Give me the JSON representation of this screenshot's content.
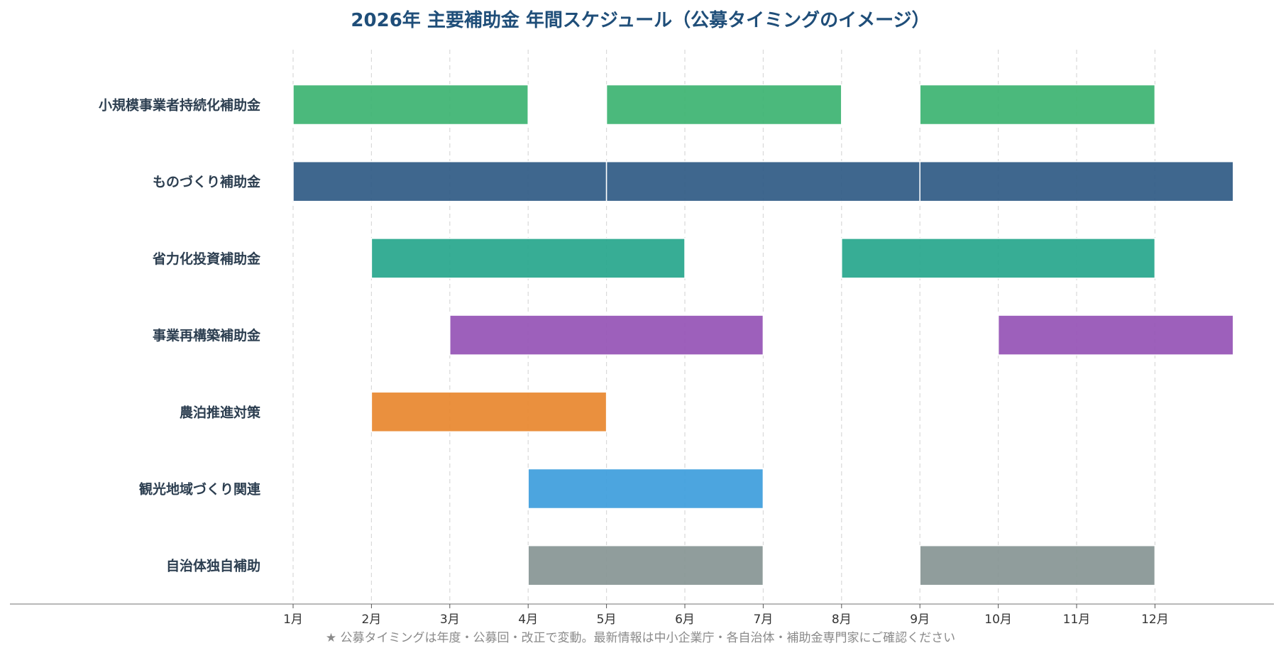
{
  "chart_data": {
    "type": "gantt",
    "title": "2026年 主要補助金 年間スケジュール（公募タイミングのイメージ）",
    "xlim": [
      1,
      13
    ],
    "x_tick_values": [
      1,
      2,
      3,
      4,
      5,
      6,
      7,
      8,
      9,
      10,
      11,
      12
    ],
    "x_tick_labels": [
      "1月",
      "2月",
      "3月",
      "4月",
      "5月",
      "6月",
      "7月",
      "8月",
      "9月",
      "10月",
      "11月",
      "12月"
    ],
    "grid": "vertical dashed",
    "note": "★ 公募タイミングは年度・公募回・改正で変動。最新情報は中小企業庁・各自治体・補助金専門家にご確認ください",
    "categories": [
      "小規模事業者持続化補助金",
      "ものづくり補助金",
      "省力化投資補助金",
      "事業再構築補助金",
      "農泊推進対策",
      "観光地域づくり関連",
      "自治体独自補助"
    ],
    "series": [
      {
        "color": "#3cb371",
        "periods": [
          [
            1,
            4
          ],
          [
            5,
            8
          ],
          [
            9,
            12
          ]
        ]
      },
      {
        "color": "#2f5a84",
        "periods": [
          [
            1,
            5
          ],
          [
            5,
            9
          ],
          [
            9,
            13
          ]
        ]
      },
      {
        "color": "#26a68c",
        "periods": [
          [
            2,
            6
          ],
          [
            8,
            12
          ]
        ]
      },
      {
        "color": "#9552b5",
        "periods": [
          [
            3,
            7
          ],
          [
            10,
            13
          ]
        ]
      },
      {
        "color": "#e8872e",
        "periods": [
          [
            2,
            5
          ]
        ]
      },
      {
        "color": "#3d9ddc",
        "periods": [
          [
            4,
            7
          ]
        ]
      },
      {
        "color": "#879594",
        "periods": [
          [
            4,
            7
          ],
          [
            9,
            12
          ]
        ]
      }
    ]
  }
}
